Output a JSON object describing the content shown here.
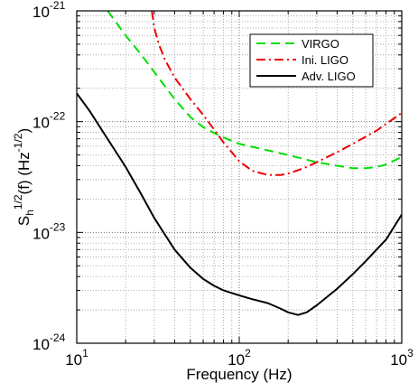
{
  "chart_data": {
    "type": "line",
    "title": "",
    "xlabel": "Frequency (Hz)",
    "ylabel": {
      "base": "S",
      "sub": "h",
      "sup": "1/2",
      "middle": "(f) (Hz",
      "unit_sup": "-1/2",
      "close": ")"
    },
    "xscale": "log",
    "yscale": "log",
    "xlim": [
      10,
      1000
    ],
    "ylim": [
      1e-24,
      1e-21
    ],
    "grid": true,
    "grid_style": "dotted",
    "legend_position": "top-right",
    "x_ticks": [
      {
        "value": 10,
        "base": "10",
        "exp": "1"
      },
      {
        "value": 100,
        "base": "10",
        "exp": "2"
      },
      {
        "value": 1000,
        "base": "10",
        "exp": "3"
      }
    ],
    "y_ticks": [
      {
        "value": 1e-24,
        "base": "10",
        "exp": "-24"
      },
      {
        "value": 1e-23,
        "base": "10",
        "exp": "-23"
      },
      {
        "value": 1e-22,
        "base": "10",
        "exp": "-22"
      },
      {
        "value": 1e-21,
        "base": "10",
        "exp": "-21"
      }
    ],
    "series": [
      {
        "name": "VIRGO",
        "color": "#00dd00",
        "dash": "10,6",
        "width": 2,
        "points": [
          [
            15.5,
            1e-21
          ],
          [
            20,
            6e-22
          ],
          [
            25,
            4e-22
          ],
          [
            30,
            2.8e-22
          ],
          [
            40,
            1.6e-22
          ],
          [
            50,
            1.1e-22
          ],
          [
            60,
            8.9e-23
          ],
          [
            70,
            7.9e-23
          ],
          [
            80,
            7.2e-23
          ],
          [
            100,
            6.3e-23
          ],
          [
            150,
            5.5e-23
          ],
          [
            200,
            5e-23
          ],
          [
            300,
            4.3e-23
          ],
          [
            400,
            4e-23
          ],
          [
            500,
            3.8e-23
          ],
          [
            600,
            3.8e-23
          ],
          [
            700,
            3.9e-23
          ],
          [
            800,
            4.1e-23
          ],
          [
            1000,
            4.8e-23
          ]
        ]
      },
      {
        "name": "Ini. LIGO",
        "color": "#ee0000",
        "dash": "10,4,2,4",
        "width": 2,
        "points": [
          [
            29,
            1e-21
          ],
          [
            30,
            7e-22
          ],
          [
            32,
            5e-22
          ],
          [
            35,
            3.6e-22
          ],
          [
            40,
            2.5e-22
          ],
          [
            50,
            1.6e-22
          ],
          [
            60,
            1.15e-22
          ],
          [
            70,
            8.5e-23
          ],
          [
            80,
            6.5e-23
          ],
          [
            100,
            4.4e-23
          ],
          [
            120,
            3.6e-23
          ],
          [
            150,
            3.3e-23
          ],
          [
            180,
            3.3e-23
          ],
          [
            200,
            3.4e-23
          ],
          [
            250,
            3.8e-23
          ],
          [
            300,
            4.3e-23
          ],
          [
            400,
            5.3e-23
          ],
          [
            500,
            6.3e-23
          ],
          [
            700,
            8.3e-23
          ],
          [
            1000,
            1.2e-22
          ]
        ]
      },
      {
        "name": "Adv. LIGO",
        "color": "#000000",
        "dash": "",
        "width": 2,
        "points": [
          [
            10,
            1.8e-22
          ],
          [
            12,
            1.25e-22
          ],
          [
            15,
            7.5e-23
          ],
          [
            20,
            3.9e-23
          ],
          [
            25,
            2.2e-23
          ],
          [
            30,
            1.35e-23
          ],
          [
            40,
            7e-24
          ],
          [
            50,
            4.8e-24
          ],
          [
            60,
            3.8e-24
          ],
          [
            70,
            3.3e-24
          ],
          [
            80,
            3e-24
          ],
          [
            100,
            2.7e-24
          ],
          [
            120,
            2.5e-24
          ],
          [
            150,
            2.3e-24
          ],
          [
            180,
            2.05e-24
          ],
          [
            200,
            1.9e-24
          ],
          [
            230,
            1.8e-24
          ],
          [
            260,
            1.9e-24
          ],
          [
            300,
            2.2e-24
          ],
          [
            400,
            3.1e-24
          ],
          [
            500,
            4.2e-24
          ],
          [
            600,
            5.5e-24
          ],
          [
            700,
            7e-24
          ],
          [
            800,
            8.6e-24
          ],
          [
            1000,
            1.45e-23
          ]
        ]
      }
    ]
  }
}
